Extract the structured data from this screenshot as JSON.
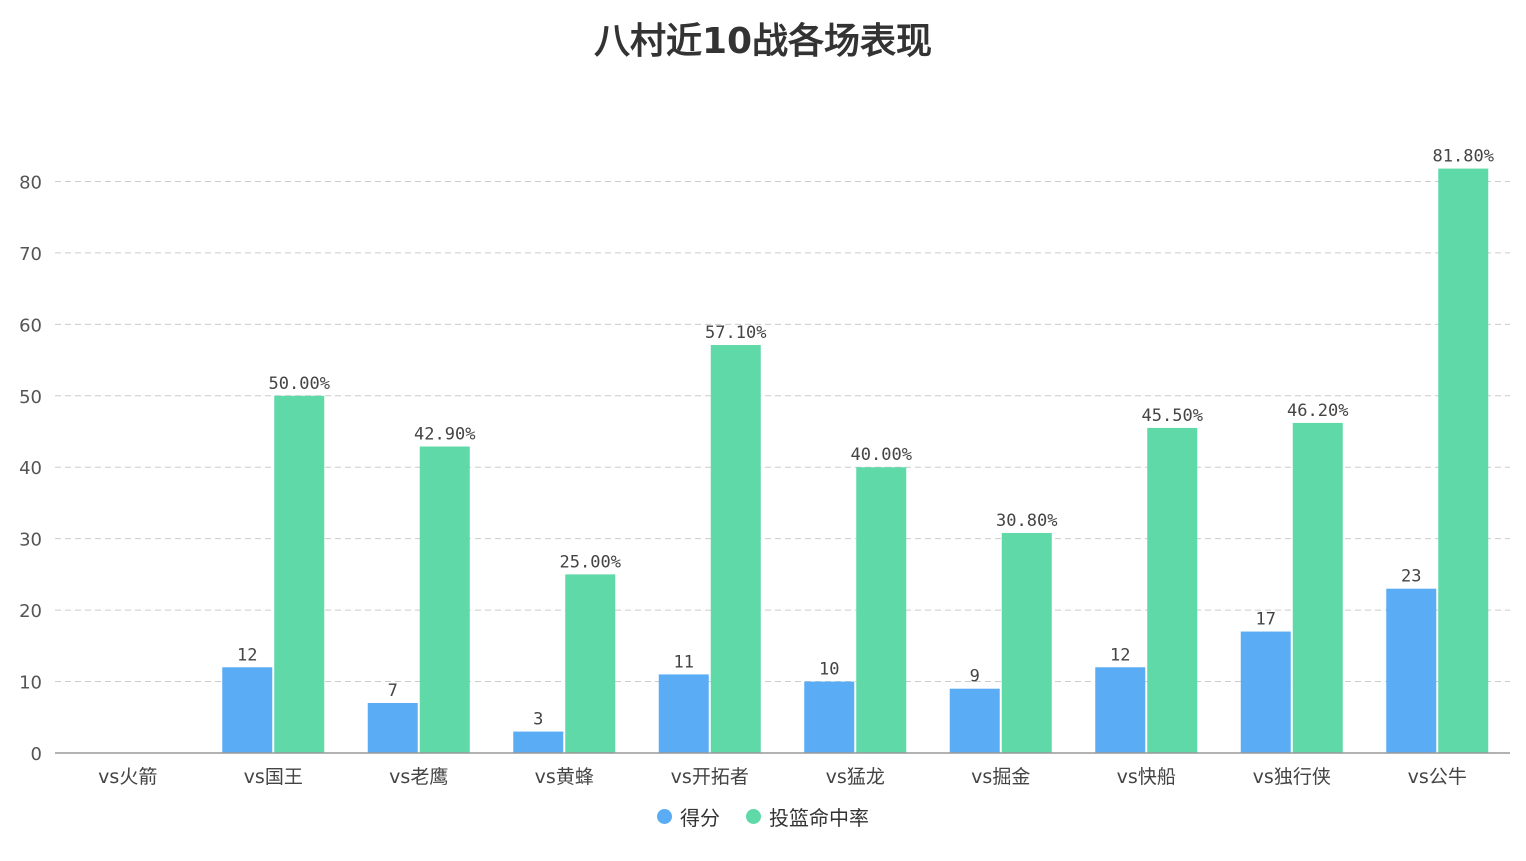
{
  "title": "八村近10战各场表现",
  "colors": {
    "score": "#5aadf5",
    "fg": "#5fd9a8"
  },
  "chart_data": {
    "type": "bar",
    "title": "八村近10战各场表现",
    "categories": [
      "vs火箭",
      "vs国王",
      "vs老鹰",
      "vs黄蜂",
      "vs开拓者",
      "vs猛龙",
      "vs掘金",
      "vs快船",
      "vs独行侠",
      "vs公牛"
    ],
    "series": [
      {
        "name": "得分",
        "values": [
          0,
          12,
          7,
          3,
          11,
          10,
          9,
          12,
          17,
          23
        ],
        "labels": [
          "",
          "12",
          "7",
          "3",
          "11",
          "10",
          "9",
          "12",
          "17",
          "23"
        ]
      },
      {
        "name": "投篮命中率",
        "values": [
          0,
          50.0,
          42.9,
          25.0,
          57.1,
          40.0,
          30.8,
          45.5,
          46.2,
          81.8
        ],
        "labels": [
          "",
          "50.00%",
          "42.90%",
          "25.00%",
          "57.10%",
          "40.00%",
          "30.80%",
          "45.50%",
          "46.20%",
          "81.80%"
        ]
      }
    ],
    "yticks": [
      0,
      10,
      20,
      30,
      40,
      50,
      60,
      70,
      80
    ],
    "ylim": [
      0,
      80
    ],
    "grid": true,
    "legend_position": "bottom-center"
  }
}
